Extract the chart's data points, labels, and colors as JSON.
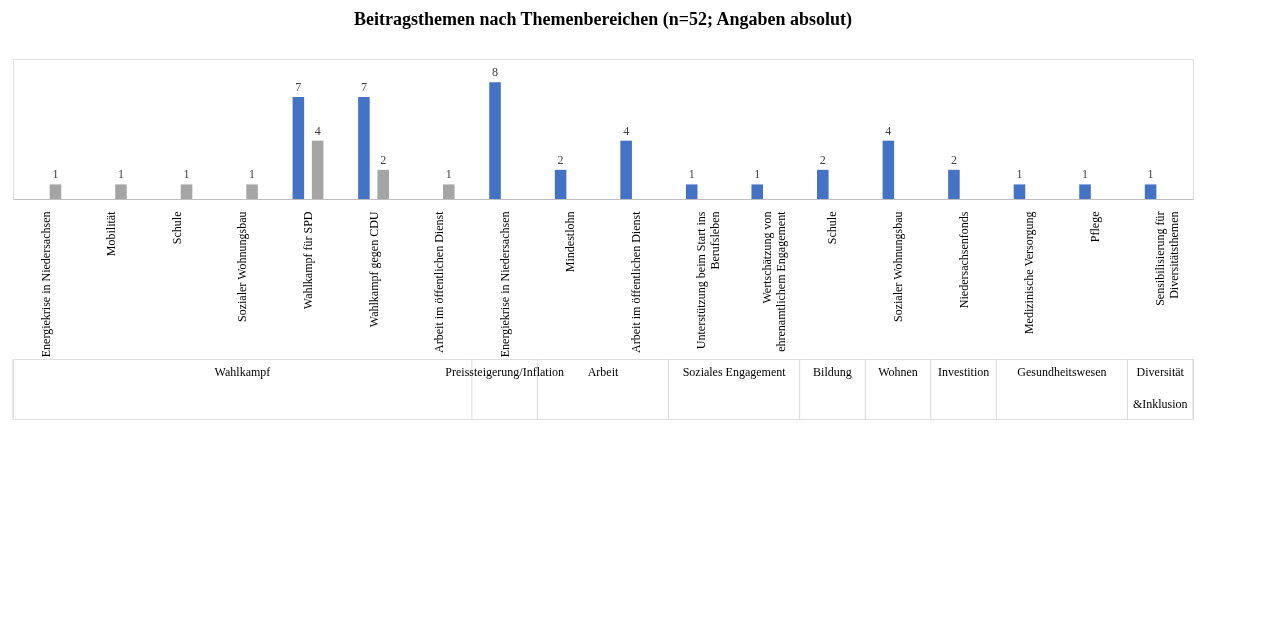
{
  "chart_data": {
    "type": "bar",
    "title": "Beitragsthemen nach Themenbereichen (n=52; Angaben absolut)",
    "categories": [
      "Energiekrise in Niedersachsen",
      "Mobilität",
      "Schule",
      "Sozialer Wohnungsbau",
      "Wahlkampf für SPD",
      "Wahlkampf gegen CDU",
      "Arbeit im öffentlichen Dienst",
      "Energiekrise in Niedersachsen",
      "Mindestlohn",
      "Arbeit im öffentlichen Dienst",
      "Unterstützung beim Start ins Berufsleben",
      "Wertschätzung von ehrenamtlichem Engagement",
      "Schule",
      "Sozialer Wohnungsbau",
      "Niedersachsenfonds",
      "Medizinische Versorgung",
      "Pflege",
      "Sensibilisierung für Diversitätsthemen"
    ],
    "series": [
      {
        "color": "#4472c4",
        "values": [
          null,
          null,
          null,
          null,
          7,
          7,
          null,
          8,
          2,
          4,
          1,
          1,
          2,
          4,
          2,
          1,
          1,
          1
        ]
      },
      {
        "color": "#a5a5a5",
        "values": [
          1,
          1,
          1,
          1,
          4,
          2,
          1,
          null,
          null,
          null,
          null,
          null,
          null,
          null,
          null,
          null,
          null,
          null
        ]
      }
    ],
    "annotations": [
      "Wahlkampf",
      "Preissteigerung/Inflation",
      "Arbeit",
      "Soziales Engagement",
      "Bildung",
      "Wohnen",
      "Investition",
      "Gesundheitswesen",
      "Diversität &Inklusion"
    ],
    "data_labels": true
  }
}
